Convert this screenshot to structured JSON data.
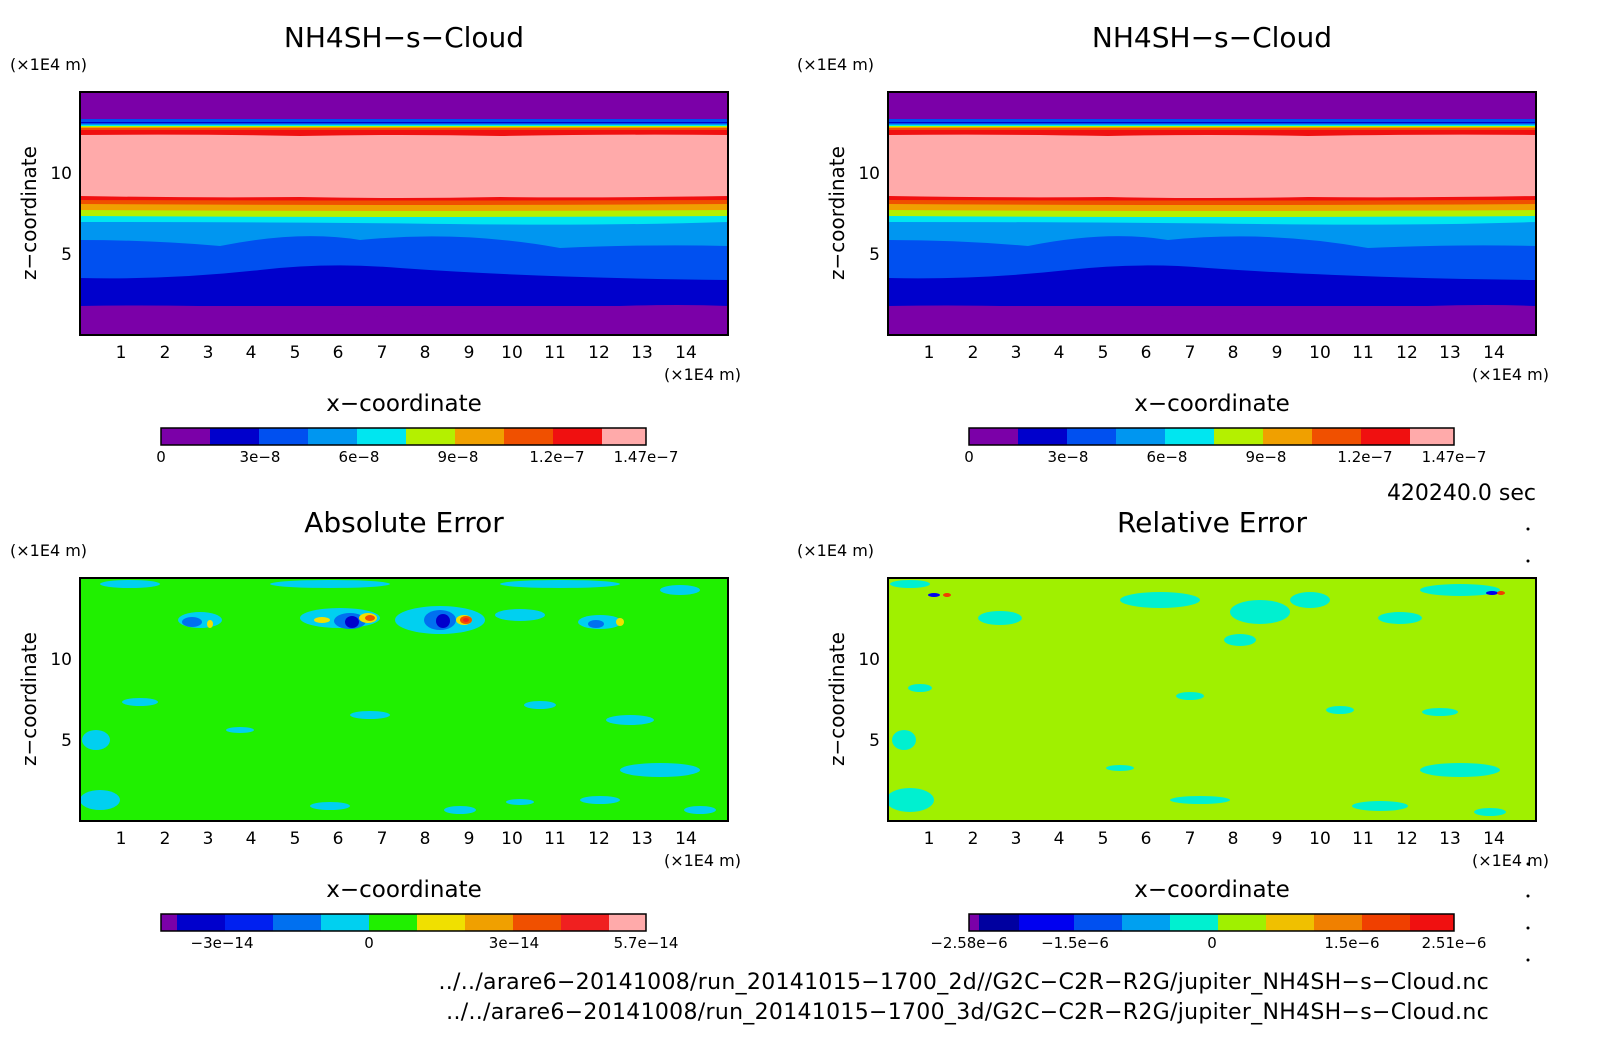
{
  "panels": [
    {
      "title": "NH4SH−s−Cloud",
      "xlabel": "x−coordinate",
      "ylabel": "z−coordinate",
      "x_unit": "(×1E4 m)",
      "y_unit": "(×1E4 m)",
      "x_ticks": [
        "1",
        "2",
        "3",
        "4",
        "5",
        "6",
        "7",
        "8",
        "9",
        "10",
        "11",
        "12",
        "13",
        "14"
      ],
      "y_ticks": [
        "5",
        "10"
      ],
      "colorbar_labels": [
        "0",
        "3e−8",
        "6e−8",
        "9e−8",
        "1.2e−7",
        "1.47e−7"
      ]
    },
    {
      "title": "NH4SH−s−Cloud",
      "xlabel": "x−coordinate",
      "ylabel": "z−coordinate",
      "x_unit": "(×1E4 m)",
      "y_unit": "(×1E4 m)",
      "x_ticks": [
        "1",
        "2",
        "3",
        "4",
        "5",
        "6",
        "7",
        "8",
        "9",
        "10",
        "11",
        "12",
        "13",
        "14"
      ],
      "y_ticks": [
        "5",
        "10"
      ],
      "colorbar_labels": [
        "0",
        "3e−8",
        "6e−8",
        "9e−8",
        "1.2e−7",
        "1.47e−7"
      ]
    },
    {
      "title": "Absolute Error",
      "xlabel": "x−coordinate",
      "ylabel": "z−coordinate",
      "x_unit": "(×1E4 m)",
      "y_unit": "(×1E4 m)",
      "x_ticks": [
        "1",
        "2",
        "3",
        "4",
        "5",
        "6",
        "7",
        "8",
        "9",
        "10",
        "11",
        "12",
        "13",
        "14"
      ],
      "y_ticks": [
        "5",
        "10"
      ],
      "colorbar_labels": [
        "−3e−14",
        "0",
        "3e−14",
        "5.7e−14"
      ]
    },
    {
      "title": "Relative Error",
      "xlabel": "x−coordinate",
      "ylabel": "z−coordinate",
      "x_unit": "(×1E4 m)",
      "y_unit": "(×1E4 m)",
      "x_ticks": [
        "1",
        "2",
        "3",
        "4",
        "5",
        "6",
        "7",
        "8",
        "9",
        "10",
        "11",
        "12",
        "13",
        "14"
      ],
      "y_ticks": [
        "5",
        "10"
      ],
      "colorbar_labels": [
        "−2.58e−6",
        "−1.5e−6",
        "0",
        "1.5e−6",
        "2.51e−6"
      ]
    }
  ],
  "time_label": "420240.0 sec",
  "file_paths": [
    "../../arare6−20141008/run_20141015−1700_2d//G2C−C2R−R2G/jupiter_NH4SH−s−Cloud.nc",
    "../../arare6−20141008/run_20141015−1700_3d/G2C−C2R−R2G/jupiter_NH4SH−s−Cloud.nc"
  ],
  "chart_data": [
    {
      "type": "heatmap",
      "title": "NH4SH−s−Cloud",
      "xlabel": "x−coordinate",
      "ylabel": "z−coordinate",
      "xlim": [
        0,
        15
      ],
      "ylim": [
        0,
        15
      ],
      "color_range": [
        0,
        1.47e-07
      ],
      "colorbar_ticks": [
        0,
        3e-08,
        6e-08,
        9e-08,
        1.2e-07,
        1.47e-07
      ],
      "colors": [
        "#7b00a8",
        "#0000cc",
        "#0050f0",
        "#0096f0",
        "#00e6f0",
        "#b4f000",
        "#f0a000",
        "#f05000",
        "#f01010",
        "#ffaaaa"
      ],
      "pattern": "horizontal layers: low values below z≈2 and above z≈13.5, maximum (1.47e−7) between z≈8.5 and z≈12.5"
    },
    {
      "type": "heatmap",
      "title": "NH4SH−s−Cloud",
      "xlabel": "x−coordinate",
      "ylabel": "z−coordinate",
      "xlim": [
        0,
        15
      ],
      "ylim": [
        0,
        15
      ],
      "color_range": [
        0,
        1.47e-07
      ],
      "colorbar_ticks": [
        0,
        3e-08,
        6e-08,
        9e-08,
        1.2e-07,
        1.47e-07
      ],
      "colors": [
        "#7b00a8",
        "#0000cc",
        "#0050f0",
        "#0096f0",
        "#00e6f0",
        "#b4f000",
        "#f0a000",
        "#f05000",
        "#f01010",
        "#ffaaaa"
      ],
      "pattern": "identical to first panel"
    },
    {
      "type": "heatmap",
      "title": "Absolute Error",
      "xlabel": "x−coordinate",
      "ylabel": "z−coordinate",
      "xlim": [
        0,
        15
      ],
      "ylim": [
        0,
        15
      ],
      "color_range": [
        -4.3e-14,
        5.7e-14
      ],
      "colorbar_ticks": [
        -3e-14,
        0,
        3e-14,
        5.7e-14
      ],
      "colors": [
        "#7b00a8",
        "#0000cc",
        "#0020f0",
        "#0070f0",
        "#00d0f0",
        "#20f000",
        "#f0e000",
        "#f0a000",
        "#f05000",
        "#f02020",
        "#ffaaaa"
      ],
      "pattern": "mostly 0 (green), scattered small patches, extremes near z≈12 at x≈6.5 and x≈8.8"
    },
    {
      "type": "heatmap",
      "title": "Relative Error",
      "xlabel": "x−coordinate",
      "ylabel": "z−coordinate",
      "xlim": [
        0,
        15
      ],
      "ylim": [
        0,
        15
      ],
      "color_range": [
        -2.58e-06,
        2.51e-06
      ],
      "colorbar_ticks": [
        -2.58e-06,
        -1.5e-06,
        0,
        1.5e-06,
        2.51e-06
      ],
      "colors": [
        "#7b00a8",
        "#0000a0",
        "#0000f0",
        "#0050f0",
        "#00a0f0",
        "#00f0d0",
        "#a0f000",
        "#f0c000",
        "#f08000",
        "#f04000",
        "#f01010",
        "#f03040"
      ],
      "pattern": "mostly 0 (yellow-green), scattered small cyan patches, extremes near top at x≈1.3 and x≈14"
    }
  ]
}
